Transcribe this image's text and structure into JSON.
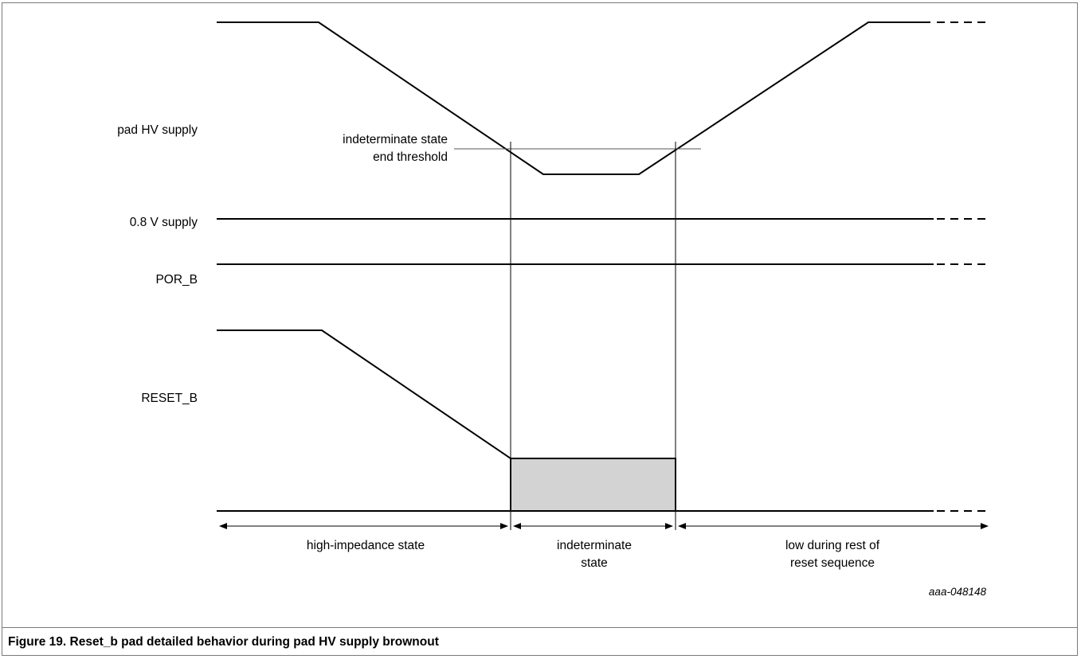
{
  "signals": {
    "pad_hv": "pad HV supply",
    "v08": "0.8 V supply",
    "por_b": "POR_B",
    "reset_b": "RESET_B"
  },
  "threshold": {
    "line1": "indeterminate state",
    "line2": "end threshold"
  },
  "states": {
    "high_z": "high-impedance state",
    "indet_1": "indeterminate",
    "indet_2": "state",
    "low_1": "low during rest of",
    "low_2": "reset sequence"
  },
  "figure_code": "aaa-048148",
  "caption": "Figure 19.  Reset_b pad detailed behavior during pad HV supply brownout",
  "colors": {
    "indeterminate_fill": "#d3d3d3",
    "line": "#000000"
  }
}
